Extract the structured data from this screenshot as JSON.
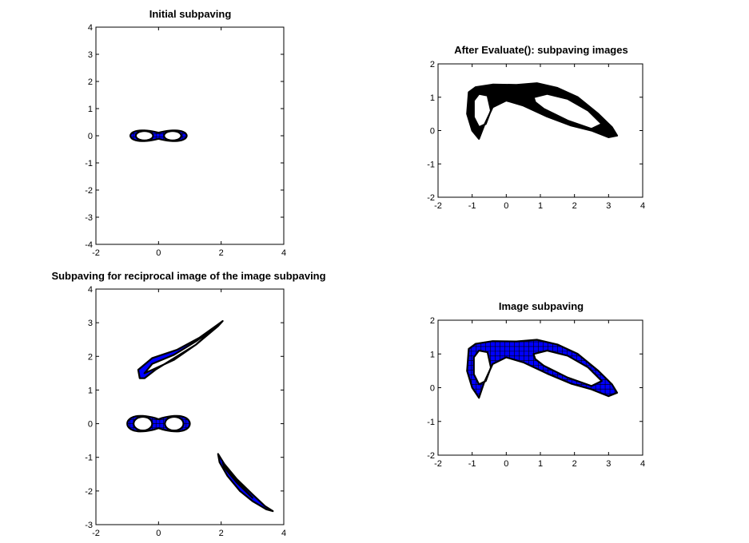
{
  "colors": {
    "fill": "#0000ff",
    "edge": "#000000",
    "background": "#ffffff"
  },
  "chart_data": [
    {
      "type": "scatter",
      "title": "Initial subpaving",
      "xlim": [
        -2,
        4
      ],
      "ylim": [
        -4,
        4
      ],
      "xticks": [
        "-2",
        "0",
        "2",
        "4"
      ],
      "yticks": [
        "-4",
        "-3",
        "-2",
        "-1",
        "0",
        "1",
        "2",
        "3",
        "4"
      ],
      "grid": false,
      "shapes": [
        {
          "kind": "lemniscate",
          "cx": 0,
          "cy": 0,
          "a": 0.9,
          "b": 0.28,
          "fill": "blue",
          "hole_scale": 0.62,
          "box_step": 0.12
        }
      ]
    },
    {
      "type": "scatter",
      "title": "After Evaluate(): subpaving images",
      "xlim": [
        -2,
        4
      ],
      "ylim": [
        -2,
        2
      ],
      "xticks": [
        "-2",
        "-1",
        "0",
        "1",
        "2",
        "3",
        "4"
      ],
      "yticks": [
        "-2",
        "-1",
        "0",
        "1",
        "2"
      ],
      "grid": false,
      "shapes": [
        {
          "kind": "curved-region",
          "fill": "black",
          "outer": [
            [
              -1.1,
              1.15
            ],
            [
              -0.9,
              1.3
            ],
            [
              -0.4,
              1.38
            ],
            [
              0.3,
              1.37
            ],
            [
              0.9,
              1.42
            ],
            [
              1.5,
              1.28
            ],
            [
              2.1,
              1.0
            ],
            [
              2.7,
              0.5
            ],
            [
              3.1,
              0.1
            ],
            [
              3.25,
              -0.15
            ],
            [
              3.0,
              -0.2
            ],
            [
              2.5,
              0.0
            ],
            [
              1.9,
              0.15
            ],
            [
              1.2,
              0.42
            ],
            [
              0.5,
              0.75
            ],
            [
              0.0,
              0.9
            ],
            [
              -0.4,
              0.7
            ],
            [
              -0.65,
              0.15
            ],
            [
              -0.8,
              -0.25
            ],
            [
              -1.0,
              0.0
            ],
            [
              -1.15,
              0.5
            ]
          ],
          "holes": [
            [
              [
                -0.95,
                0.9
              ],
              [
                -0.8,
                1.1
              ],
              [
                -0.55,
                1.05
              ],
              [
                -0.45,
                0.6
              ],
              [
                -0.6,
                0.2
              ],
              [
                -0.8,
                0.1
              ],
              [
                -0.95,
                0.4
              ]
            ],
            [
              [
                0.8,
                1.0
              ],
              [
                1.2,
                1.1
              ],
              [
                1.8,
                0.95
              ],
              [
                2.4,
                0.6
              ],
              [
                2.8,
                0.2
              ],
              [
                2.5,
                0.05
              ],
              [
                1.8,
                0.3
              ],
              [
                1.1,
                0.65
              ],
              [
                0.85,
                0.85
              ]
            ]
          ]
        }
      ]
    },
    {
      "type": "scatter",
      "title": "Subpaving for reciprocal image of the image subpaving",
      "xlim": [
        -2,
        4
      ],
      "ylim": [
        -3,
        4
      ],
      "xticks": [
        "-2",
        "0",
        "2",
        "4"
      ],
      "yticks": [
        "-3",
        "-2",
        "-1",
        "0",
        "1",
        "2",
        "3",
        "4"
      ],
      "grid": false,
      "shapes": [
        {
          "kind": "lemniscate",
          "cx": 0,
          "cy": 0,
          "a": 1.0,
          "b": 0.33,
          "fill": "blue",
          "hole_scale": 0.6,
          "box_step": 0.12
        },
        {
          "kind": "curved-region",
          "fill": "blue",
          "outer": [
            [
              -0.6,
              1.35
            ],
            [
              -0.65,
              1.6
            ],
            [
              -0.2,
              1.95
            ],
            [
              0.6,
              2.2
            ],
            [
              1.3,
              2.55
            ],
            [
              1.9,
              2.95
            ],
            [
              2.05,
              3.05
            ],
            [
              1.9,
              2.9
            ],
            [
              1.2,
              2.35
            ],
            [
              0.5,
              1.95
            ],
            [
              -0.1,
              1.6
            ],
            [
              -0.45,
              1.35
            ]
          ],
          "holes": [
            [
              [
                -0.45,
                1.5
              ],
              [
                -0.2,
                1.78
              ],
              [
                0.5,
                2.05
              ],
              [
                1.2,
                2.45
              ],
              [
                1.8,
                2.85
              ],
              [
                1.2,
                2.35
              ],
              [
                0.5,
                1.9
              ],
              [
                -0.2,
                1.6
              ]
            ]
          ]
        },
        {
          "kind": "curved-region",
          "fill": "blue",
          "outer": [
            [
              1.9,
              -0.9
            ],
            [
              2.1,
              -1.2
            ],
            [
              2.5,
              -1.65
            ],
            [
              3.0,
              -2.1
            ],
            [
              3.4,
              -2.45
            ],
            [
              3.65,
              -2.6
            ],
            [
              3.45,
              -2.55
            ],
            [
              3.0,
              -2.3
            ],
            [
              2.6,
              -2.0
            ],
            [
              2.2,
              -1.55
            ],
            [
              1.95,
              -1.15
            ]
          ],
          "holes": [
            [
              [
                2.05,
                -1.15
              ],
              [
                2.4,
                -1.6
              ],
              [
                3.0,
                -2.2
              ],
              [
                2.5,
                -1.75
              ],
              [
                2.1,
                -1.3
              ]
            ]
          ]
        }
      ]
    },
    {
      "type": "scatter",
      "title": "Image subpaving",
      "xlim": [
        -2,
        4
      ],
      "ylim": [
        -2,
        2
      ],
      "xticks": [
        "-2",
        "-1",
        "0",
        "1",
        "2",
        "3",
        "4"
      ],
      "yticks": [
        "-2",
        "-1",
        "0",
        "1",
        "2"
      ],
      "grid": false,
      "shapes": [
        {
          "kind": "curved-region",
          "fill": "blue",
          "box_step": 0.14,
          "outer": [
            [
              -1.1,
              1.15
            ],
            [
              -0.9,
              1.3
            ],
            [
              -0.4,
              1.38
            ],
            [
              0.3,
              1.37
            ],
            [
              0.9,
              1.42
            ],
            [
              1.5,
              1.28
            ],
            [
              2.1,
              1.0
            ],
            [
              2.7,
              0.5
            ],
            [
              3.1,
              0.1
            ],
            [
              3.25,
              -0.15
            ],
            [
              3.0,
              -0.25
            ],
            [
              2.5,
              -0.05
            ],
            [
              1.9,
              0.12
            ],
            [
              1.2,
              0.42
            ],
            [
              0.5,
              0.75
            ],
            [
              0.0,
              0.9
            ],
            [
              -0.4,
              0.7
            ],
            [
              -0.65,
              0.15
            ],
            [
              -0.8,
              -0.3
            ],
            [
              -1.0,
              0.0
            ],
            [
              -1.15,
              0.5
            ]
          ],
          "holes": [
            [
              [
                -0.95,
                0.9
              ],
              [
                -0.8,
                1.1
              ],
              [
                -0.55,
                1.05
              ],
              [
                -0.45,
                0.6
              ],
              [
                -0.6,
                0.2
              ],
              [
                -0.8,
                0.1
              ],
              [
                -0.95,
                0.4
              ]
            ],
            [
              [
                0.8,
                1.0
              ],
              [
                1.2,
                1.1
              ],
              [
                1.8,
                0.95
              ],
              [
                2.4,
                0.6
              ],
              [
                2.8,
                0.2
              ],
              [
                2.5,
                0.05
              ],
              [
                1.8,
                0.3
              ],
              [
                1.1,
                0.65
              ],
              [
                0.85,
                0.85
              ]
            ]
          ]
        }
      ]
    }
  ]
}
